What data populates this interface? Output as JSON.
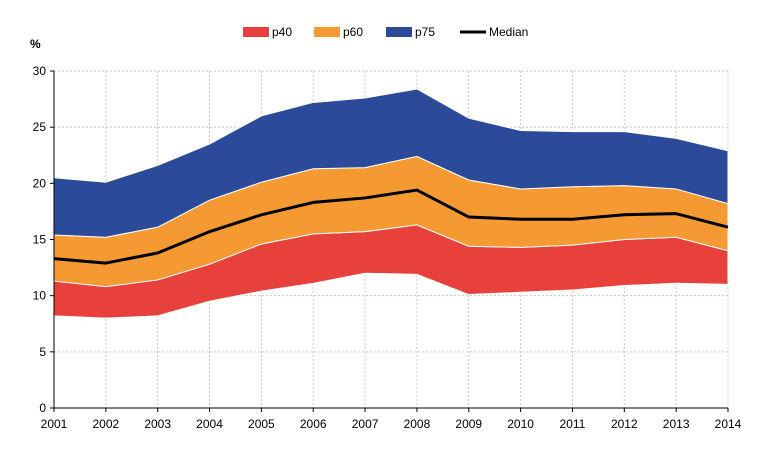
{
  "chart_data": {
    "type": "area",
    "title": "",
    "xlabel": "",
    "ylabel": "%",
    "x": [
      2001,
      2002,
      2003,
      2004,
      2005,
      2006,
      2007,
      2008,
      2009,
      2010,
      2011,
      2012,
      2013,
      2014
    ],
    "ylim": [
      0,
      30
    ],
    "yticks": [
      0,
      5,
      10,
      15,
      20,
      25,
      30
    ],
    "grid": true,
    "legend_position": "top",
    "bands": [
      {
        "name": "p40",
        "color": "#e8413c",
        "lower": [
          8.2,
          8.0,
          8.2,
          9.5,
          10.4,
          11.1,
          12.0,
          11.9,
          10.1,
          10.3,
          10.5,
          10.9,
          11.1,
          11.0
        ],
        "upper": [
          11.3,
          10.8,
          11.4,
          12.8,
          14.6,
          15.5,
          15.7,
          16.3,
          14.4,
          14.3,
          14.5,
          15.0,
          15.2,
          14.0
        ]
      },
      {
        "name": "p60",
        "color": "#f59a32",
        "lower": [
          11.3,
          10.8,
          11.4,
          12.8,
          14.6,
          15.5,
          15.7,
          16.3,
          14.4,
          14.3,
          14.5,
          15.0,
          15.2,
          14.0
        ],
        "upper": [
          15.4,
          15.2,
          16.1,
          18.5,
          20.1,
          21.3,
          21.4,
          22.4,
          20.3,
          19.5,
          19.7,
          19.8,
          19.5,
          18.2
        ]
      },
      {
        "name": "p75",
        "color": "#2b4a9a",
        "lower": [
          15.4,
          15.2,
          16.1,
          18.5,
          20.1,
          21.3,
          21.4,
          22.4,
          20.3,
          19.5,
          19.7,
          19.8,
          19.5,
          18.2
        ],
        "upper": [
          20.5,
          20.1,
          21.6,
          23.5,
          26.0,
          27.2,
          27.6,
          28.4,
          25.8,
          24.7,
          24.6,
          24.6,
          24.0,
          22.9
        ]
      }
    ],
    "series": [
      {
        "name": "Median",
        "color": "#000000",
        "values": [
          13.3,
          12.9,
          13.8,
          15.7,
          17.2,
          18.3,
          18.7,
          19.4,
          17.0,
          16.8,
          16.8,
          17.2,
          17.3,
          16.1
        ]
      }
    ],
    "legend": [
      {
        "label": "p40",
        "color": "#e8413c",
        "kind": "swatch"
      },
      {
        "label": "p60",
        "color": "#f59a32",
        "kind": "swatch"
      },
      {
        "label": "p75",
        "color": "#2b4a9a",
        "kind": "swatch"
      },
      {
        "label": "Median",
        "color": "#000000",
        "kind": "line"
      }
    ]
  }
}
